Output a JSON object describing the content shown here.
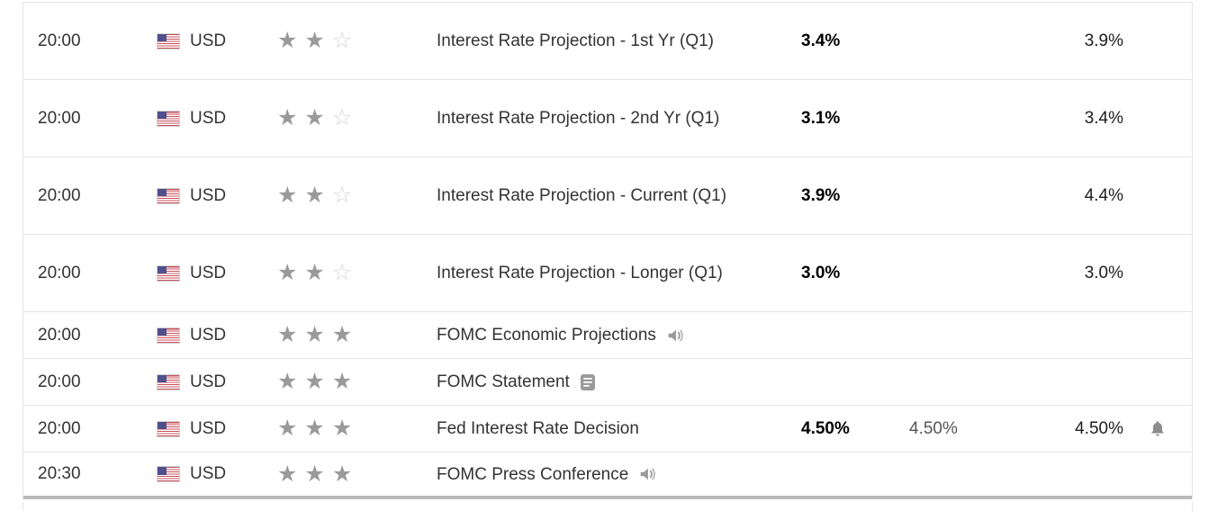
{
  "table": {
    "name": "economic-calendar",
    "columns": [
      "time",
      "currency",
      "importance",
      "event",
      "actual",
      "forecast",
      "previous",
      "alert"
    ],
    "colors": {
      "row_border": "#e5e5e5",
      "group_end_border": "#b9b9b9",
      "text": "#333333",
      "actual_bold": "#000000",
      "forecast_muted": "#555555",
      "star_filled": "#9a9a9a",
      "star_empty": "#d4d4d4",
      "icon_gray": "#8c8c8c",
      "flag_red": "#c8515c",
      "flag_blue": "#50508c"
    },
    "rows": [
      {
        "time": "20:00",
        "currency": "USD",
        "stars": 2,
        "max_stars": 3,
        "event": "Interest Rate Projection - 1st Yr (Q1)",
        "actual": "3.4%",
        "forecast": "",
        "previous": "3.9%"
      },
      {
        "time": "20:00",
        "currency": "USD",
        "stars": 2,
        "max_stars": 3,
        "event": "Interest Rate Projection - 2nd Yr (Q1)",
        "actual": "3.1%",
        "forecast": "",
        "previous": "3.4%"
      },
      {
        "time": "20:00",
        "currency": "USD",
        "stars": 2,
        "max_stars": 3,
        "event": "Interest Rate Projection - Current (Q1)",
        "actual": "3.9%",
        "forecast": "",
        "previous": "4.4%"
      },
      {
        "time": "20:00",
        "currency": "USD",
        "stars": 2,
        "max_stars": 3,
        "event": "Interest Rate Projection - Longer (Q1)",
        "actual": "3.0%",
        "forecast": "",
        "previous": "3.0%"
      },
      {
        "time": "20:00",
        "currency": "USD",
        "stars": 3,
        "max_stars": 3,
        "event": "FOMC Economic Projections",
        "event_icon": "speaker-icon",
        "actual": "",
        "forecast": "",
        "previous": ""
      },
      {
        "time": "20:00",
        "currency": "USD",
        "stars": 3,
        "max_stars": 3,
        "event": "FOMC Statement",
        "event_icon": "report-icon",
        "actual": "",
        "forecast": "",
        "previous": ""
      },
      {
        "time": "20:00",
        "currency": "USD",
        "stars": 3,
        "max_stars": 3,
        "event": "Fed Interest Rate Decision",
        "actual": "4.50%",
        "forecast": "4.50%",
        "previous": "4.50%",
        "row_icon": "bell-icon"
      },
      {
        "time": "20:30",
        "currency": "USD",
        "stars": 3,
        "max_stars": 3,
        "event": "FOMC Press Conference",
        "event_icon": "speaker-icon",
        "actual": "",
        "forecast": "",
        "previous": ""
      }
    ]
  }
}
